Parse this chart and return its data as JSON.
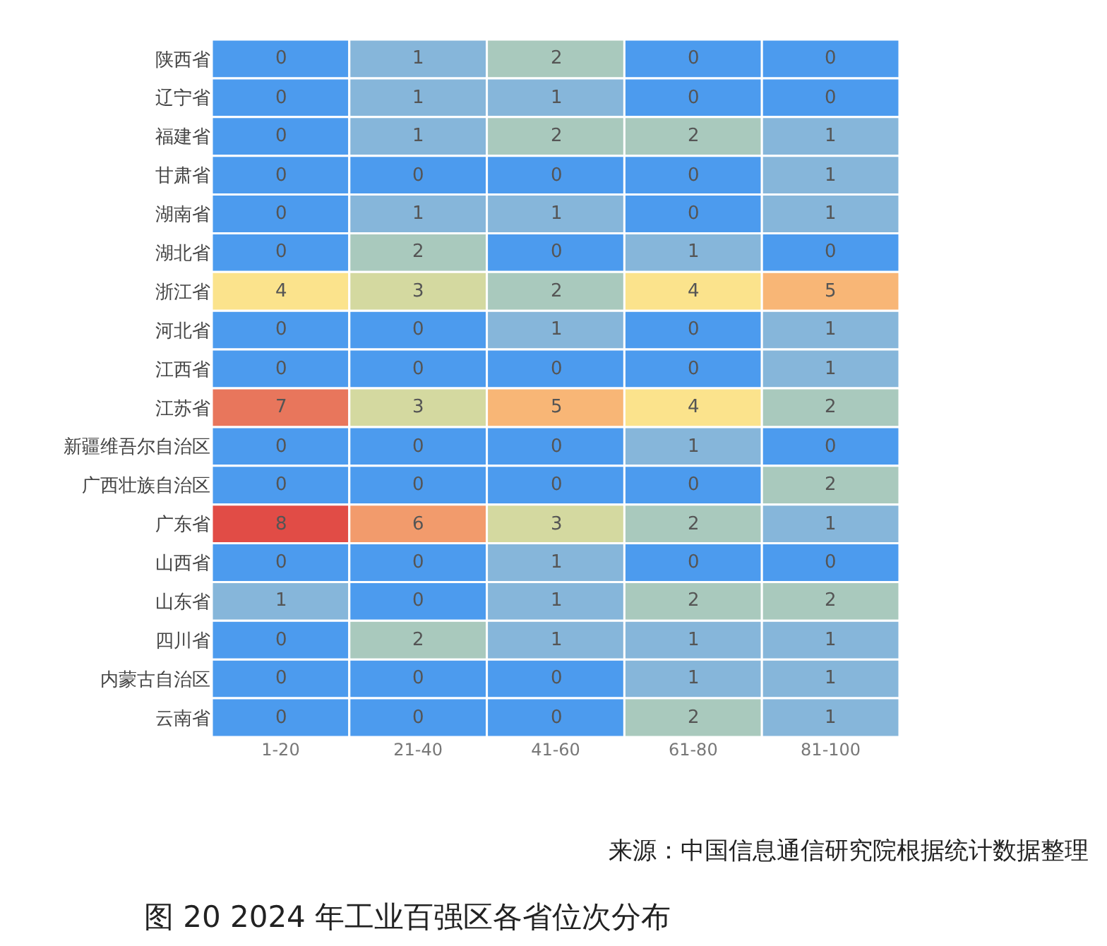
{
  "chart_data": {
    "type": "heatmap",
    "title": "图 20 2024 年工业百强区各省位次分布",
    "annotations": [
      "来源：中国信息通信研究院根据统计数据整理"
    ],
    "categories": [
      "1-20",
      "21-40",
      "41-60",
      "61-80",
      "81-100"
    ],
    "y_categories": [
      "陕西省",
      "辽宁省",
      "福建省",
      "甘肃省",
      "湖南省",
      "湖北省",
      "浙江省",
      "河北省",
      "江西省",
      "江苏省",
      "新疆维吾尔自治区",
      "广西壮族自治区",
      "广东省",
      "山西省",
      "山东省",
      "四川省",
      "内蒙古自治区",
      "云南省"
    ],
    "cells": [
      [
        0,
        1,
        2,
        0,
        0
      ],
      [
        0,
        1,
        1,
        0,
        0
      ],
      [
        0,
        1,
        2,
        2,
        1
      ],
      [
        0,
        0,
        0,
        0,
        1
      ],
      [
        0,
        1,
        1,
        0,
        1
      ],
      [
        0,
        2,
        0,
        1,
        0
      ],
      [
        4,
        3,
        2,
        4,
        5
      ],
      [
        0,
        0,
        1,
        0,
        1
      ],
      [
        0,
        0,
        0,
        0,
        1
      ],
      [
        7,
        3,
        5,
        4,
        2
      ],
      [
        0,
        0,
        0,
        1,
        0
      ],
      [
        0,
        0,
        0,
        0,
        2
      ],
      [
        8,
        6,
        3,
        2,
        1
      ],
      [
        0,
        0,
        1,
        0,
        0
      ],
      [
        1,
        0,
        1,
        2,
        2
      ],
      [
        0,
        2,
        1,
        1,
        1
      ],
      [
        0,
        0,
        0,
        1,
        1
      ],
      [
        0,
        0,
        0,
        2,
        1
      ]
    ],
    "colors": [
      [
        "#4c9bee",
        "#86b6da",
        "#a9c9bd",
        "#4c9bee",
        "#4c9bee"
      ],
      [
        "#4c9bee",
        "#86b6da",
        "#86b6da",
        "#4c9bee",
        "#4c9bee"
      ],
      [
        "#4c9bee",
        "#86b6da",
        "#a9c9bd",
        "#a9c9bd",
        "#86b6da"
      ],
      [
        "#4c9bee",
        "#4c9bee",
        "#4c9bee",
        "#4c9bee",
        "#86b6da"
      ],
      [
        "#4c9bee",
        "#86b6da",
        "#86b6da",
        "#4c9bee",
        "#86b6da"
      ],
      [
        "#4c9bee",
        "#a9c9bd",
        "#4c9bee",
        "#86b6da",
        "#4c9bee"
      ],
      [
        "#fbe38c",
        "#d4d9a0",
        "#a9c9bd",
        "#fbe38c",
        "#f8b676"
      ],
      [
        "#4c9bee",
        "#4c9bee",
        "#86b6da",
        "#4c9bee",
        "#86b6da"
      ],
      [
        "#4c9bee",
        "#4c9bee",
        "#4c9bee",
        "#4c9bee",
        "#86b6da"
      ],
      [
        "#e8765c",
        "#d4d9a0",
        "#f8b676",
        "#fbe38c",
        "#a9c9bd"
      ],
      [
        "#4c9bee",
        "#4c9bee",
        "#4c9bee",
        "#86b6da",
        "#4c9bee"
      ],
      [
        "#4c9bee",
        "#4c9bee",
        "#4c9bee",
        "#4c9bee",
        "#a9c9bd"
      ],
      [
        "#e14c46",
        "#f29b6c",
        "#d4d9a0",
        "#a9c9bd",
        "#86b6da"
      ],
      [
        "#4c9bee",
        "#4c9bee",
        "#86b6da",
        "#4c9bee",
        "#4c9bee"
      ],
      [
        "#86b6da",
        "#4c9bee",
        "#86b6da",
        "#a9c9bd",
        "#a9c9bd"
      ],
      [
        "#4c9bee",
        "#a9c9bd",
        "#86b6da",
        "#86b6da",
        "#86b6da"
      ],
      [
        "#4c9bee",
        "#4c9bee",
        "#4c9bee",
        "#86b6da",
        "#86b6da"
      ],
      [
        "#4c9bee",
        "#4c9bee",
        "#4c9bee",
        "#a9c9bd",
        "#86b6da"
      ]
    ],
    "data_labels": true
  }
}
